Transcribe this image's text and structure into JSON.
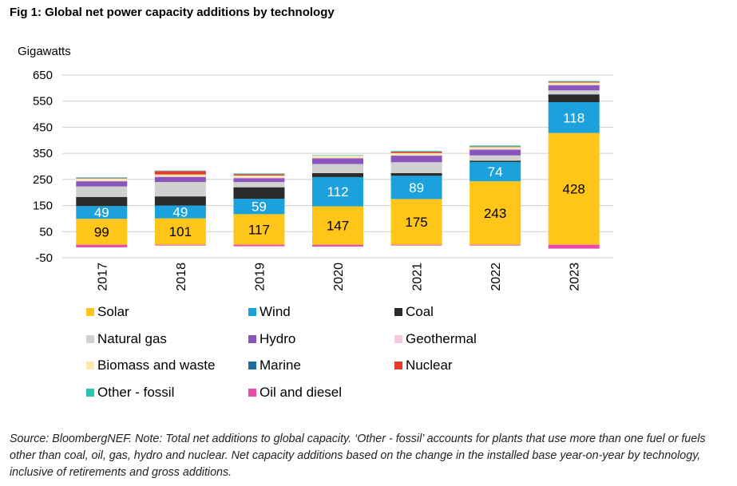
{
  "title": "Fig 1: Global net power capacity additions by technology",
  "source_note": "Source: BloombergNEF. Note: Total net additions to global capacity. ‘Other - fossil’ accounts for plants that use more than one fuel or fuels other than coal, oil, gas, hydro and nuclear. Net capacity additions based on the change in the installed base year-on-year by technology, inclusive of retirements and gross additions.",
  "chart_data": {
    "type": "bar",
    "stacked": true,
    "title": "Fig 1: Global net power capacity additions by technology",
    "ylabel": "Gigawatts",
    "xlabel": "",
    "ylim": [
      -50,
      650
    ],
    "yticks": [
      -50,
      50,
      150,
      250,
      350,
      450,
      550,
      650
    ],
    "ytick_labels": [
      "-50",
      "50",
      "150",
      "250",
      "350",
      "450",
      "550",
      "650"
    ],
    "grid": true,
    "legend_position": "bottom",
    "categories": [
      "2017",
      "2018",
      "2019",
      "2020",
      "2021",
      "2022",
      "2023"
    ],
    "series": [
      {
        "name": "Solar",
        "color": "#FFC619",
        "values": [
          99,
          101,
          117,
          147,
          175,
          243,
          428
        ],
        "labels": [
          "99",
          "101",
          "117",
          "147",
          "175",
          "243",
          "428"
        ],
        "label_color": "#000000"
      },
      {
        "name": "Wind",
        "color": "#1BA1DC",
        "values": [
          49,
          49,
          59,
          112,
          89,
          74,
          118
        ],
        "labels": [
          "49",
          "49",
          "59",
          "112",
          "89",
          "74",
          "118"
        ],
        "label_color": "#FFFFFF"
      },
      {
        "name": "Coal",
        "color": "#2B2B2B",
        "values": [
          35,
          35,
          44,
          15,
          10,
          5,
          30
        ],
        "labels": null
      },
      {
        "name": "Natural gas",
        "color": "#D0D0D0",
        "values": [
          40,
          55,
          20,
          35,
          42,
          20,
          15
        ],
        "labels": null
      },
      {
        "name": "Hydro",
        "color": "#8B55BE",
        "values": [
          20,
          20,
          15,
          22,
          25,
          22,
          20
        ],
        "labels": null
      },
      {
        "name": "Geothermal",
        "color": "#F6C9E2",
        "values": [
          2,
          1,
          2,
          2,
          2,
          2,
          2
        ],
        "labels": null
      },
      {
        "name": "Biomass and waste",
        "color": "#FBE7B0",
        "values": [
          8,
          8,
          8,
          8,
          8,
          8,
          8
        ],
        "labels": null
      },
      {
        "name": "Marine",
        "color": "#1F6E99",
        "values": [
          0,
          0,
          0,
          0,
          0,
          0,
          0
        ],
        "labels": null
      },
      {
        "name": "Nuclear",
        "color": "#E83A2E",
        "values": [
          2,
          13,
          5,
          0,
          5,
          2,
          3
        ],
        "labels": null
      },
      {
        "name": "Other - fossil",
        "color": "#2CC3B2",
        "values": [
          3,
          2,
          3,
          2,
          3,
          4,
          3
        ],
        "labels": null
      },
      {
        "name": "Oil and diesel",
        "color": "#E84DAD",
        "values": [
          -10,
          -3,
          -6,
          -7,
          -3,
          -3,
          -15
        ],
        "labels": null
      }
    ]
  }
}
